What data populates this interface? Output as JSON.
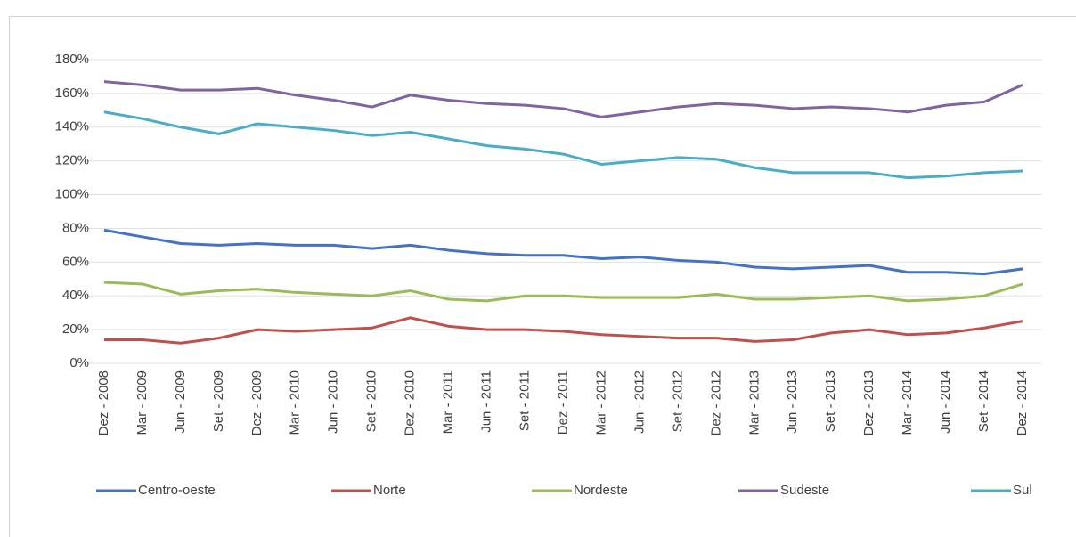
{
  "chart_data": {
    "type": "line",
    "categories": [
      "Dez - 2008",
      "Mar - 2009",
      "Jun - 2009",
      "Set - 2009",
      "Dez - 2009",
      "Mar - 2010",
      "Jun - 2010",
      "Set - 2010",
      "Dez - 2010",
      "Mar - 2011",
      "Jun - 2011",
      "Set - 2011",
      "Dez - 2011",
      "Mar - 2012",
      "Jun - 2012",
      "Set - 2012",
      "Dez - 2012",
      "Mar - 2013",
      "Jun - 2013",
      "Set - 2013",
      "Dez - 2013",
      "Mar - 2014",
      "Jun - 2014",
      "Set - 2014",
      "Dez - 2014"
    ],
    "series": [
      {
        "name": "Centro-oeste",
        "color": "#4472c4",
        "values": [
          79,
          75,
          71,
          70,
          71,
          70,
          70,
          68,
          70,
          67,
          65,
          64,
          64,
          62,
          63,
          61,
          60,
          57,
          56,
          57,
          58,
          54,
          54,
          53,
          56
        ]
      },
      {
        "name": "Norte",
        "color": "#c0504d",
        "values": [
          14,
          14,
          12,
          15,
          20,
          19,
          20,
          21,
          27,
          22,
          20,
          20,
          19,
          17,
          16,
          15,
          15,
          13,
          14,
          18,
          20,
          17,
          18,
          21,
          25
        ]
      },
      {
        "name": "Nordeste",
        "color": "#9bbb59",
        "values": [
          48,
          47,
          41,
          43,
          44,
          42,
          41,
          40,
          43,
          38,
          37,
          40,
          40,
          39,
          39,
          39,
          41,
          38,
          38,
          39,
          40,
          37,
          38,
          40,
          47
        ]
      },
      {
        "name": "Sudeste",
        "color": "#8064a2",
        "values": [
          167,
          165,
          162,
          162,
          163,
          159,
          156,
          152,
          159,
          156,
          154,
          153,
          151,
          146,
          149,
          152,
          154,
          153,
          151,
          152,
          151,
          149,
          153,
          155,
          165
        ]
      },
      {
        "name": "Sul",
        "color": "#4bacc6",
        "values": [
          149,
          145,
          140,
          136,
          142,
          140,
          138,
          135,
          137,
          133,
          129,
          127,
          124,
          118,
          120,
          122,
          121,
          116,
          113,
          113,
          113,
          110,
          111,
          113,
          114
        ]
      }
    ],
    "ylim": [
      0,
      180
    ],
    "yticks": [
      {
        "value": 0,
        "label": "0%"
      },
      {
        "value": 20,
        "label": "20%"
      },
      {
        "value": 40,
        "label": "40%"
      },
      {
        "value": 60,
        "label": "60%"
      },
      {
        "value": 80,
        "label": "80%"
      },
      {
        "value": 100,
        "label": "100%"
      },
      {
        "value": 120,
        "label": "120%"
      },
      {
        "value": 140,
        "label": "140%"
      },
      {
        "value": 160,
        "label": "160%"
      },
      {
        "value": 180,
        "label": "180%"
      }
    ],
    "grid": true
  }
}
